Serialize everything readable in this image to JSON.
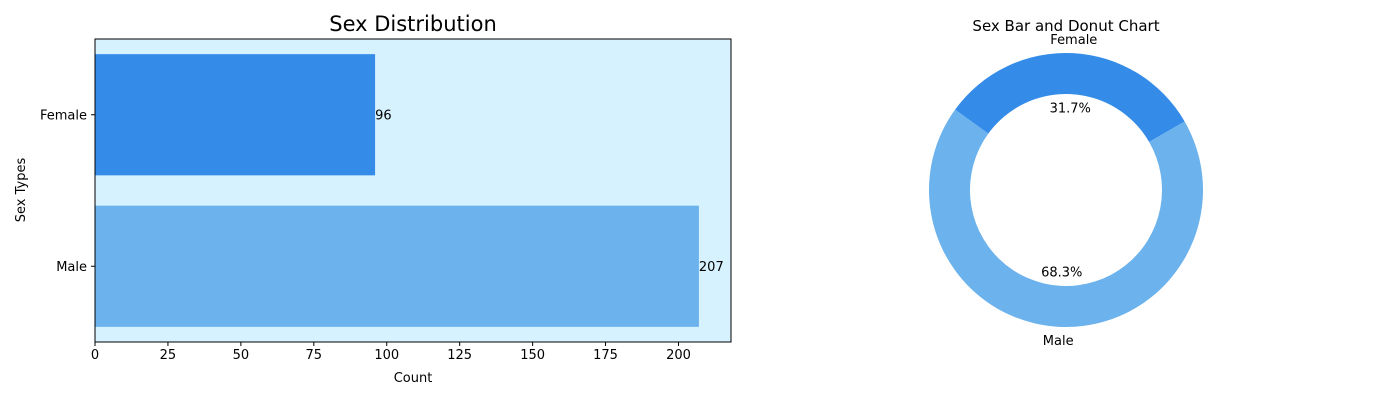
{
  "chart_data": [
    {
      "type": "bar",
      "orientation": "horizontal",
      "title": "Sex Distribution",
      "xlabel": "Count",
      "ylabel": "Sex Types",
      "categories": [
        "Female",
        "Male"
      ],
      "values": [
        96,
        207
      ],
      "data_labels": [
        "96",
        "207"
      ],
      "bar_colors": [
        "#348ce8",
        "#6cb2ec"
      ],
      "background": "#d6f2fe",
      "xlim": [
        0,
        218
      ],
      "xticks": [
        0,
        25,
        50,
        75,
        100,
        125,
        150,
        175,
        200
      ],
      "grid": false,
      "legend": "none"
    },
    {
      "type": "pie",
      "variant": "donut",
      "title": "Sex Bar and Donut Chart",
      "labels": [
        "Female",
        "Male"
      ],
      "values": [
        96,
        207
      ],
      "percent_labels": [
        "31.7%",
        "68.3%"
      ],
      "colors": [
        "#348ce8",
        "#6cb2ec"
      ],
      "legend": "none"
    }
  ]
}
